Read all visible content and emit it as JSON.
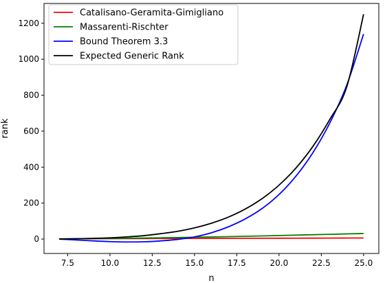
{
  "chart_data": {
    "type": "line",
    "title": "",
    "xlabel": "n",
    "ylabel": "rank",
    "xlim": [
      6.1,
      25.9
    ],
    "ylim": [
      -80,
      1310
    ],
    "xticks": [
      7.5,
      10.0,
      12.5,
      15.0,
      17.5,
      20.0,
      22.5,
      25.0
    ],
    "xtick_labels": [
      "7.5",
      "10.0",
      "12.5",
      "15.0",
      "17.5",
      "20.0",
      "22.5",
      "25.0"
    ],
    "yticks": [
      0,
      200,
      400,
      600,
      800,
      1000,
      1200
    ],
    "ytick_labels": [
      "0",
      "200",
      "400",
      "600",
      "800",
      "1000",
      "1200"
    ],
    "grid": false,
    "legend_position": "upper-left",
    "series": [
      {
        "name": "Catalisano-Geramita-Gimigliano",
        "color": "#ff0000",
        "x": [
          7,
          9,
          11,
          13,
          15,
          17,
          19,
          21,
          23,
          25
        ],
        "y": [
          1,
          2,
          2.5,
          3,
          3.5,
          4,
          4.5,
          5,
          5.5,
          6
        ]
      },
      {
        "name": "Massarenti-Rischter",
        "color": "#008000",
        "x": [
          7,
          9,
          11,
          13,
          15,
          17,
          19,
          21,
          23,
          25
        ],
        "y": [
          1,
          2.5,
          4.5,
          7,
          10,
          13.5,
          17.5,
          22,
          26.5,
          31
        ]
      },
      {
        "name": "Bound Theorem 3.3",
        "color": "#0000ff",
        "x": [
          7,
          8,
          9,
          10,
          11,
          12,
          13,
          14,
          15,
          16,
          17,
          18,
          19,
          20,
          21,
          22,
          23,
          24,
          25
        ],
        "y": [
          0,
          -5,
          -10,
          -14,
          -16,
          -15,
          -10,
          -2,
          12,
          35,
          68,
          112,
          170,
          248,
          350,
          480,
          645,
          855,
          1140
        ]
      },
      {
        "name": "Expected Generic Rank",
        "color": "#000000",
        "x": [
          7,
          8,
          9,
          10,
          11,
          12,
          13,
          14,
          15,
          16,
          17,
          18,
          19,
          20,
          21,
          22,
          23,
          24,
          25
        ],
        "y": [
          0,
          2,
          4,
          7,
          12,
          19,
          30,
          43,
          62,
          88,
          122,
          167,
          225,
          300,
          395,
          515,
          665,
          845,
          1250
        ]
      }
    ]
  }
}
